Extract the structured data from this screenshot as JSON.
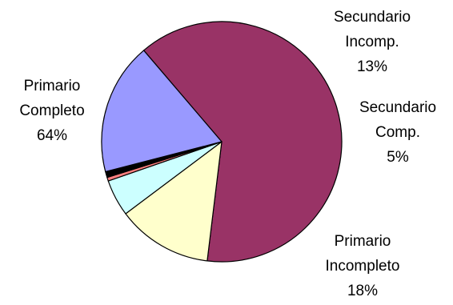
{
  "chart_data": {
    "type": "pie",
    "title": "",
    "slices": [
      {
        "label": "Primario Completo",
        "label_lines": [
          "Primario",
          "Completo",
          "64%"
        ],
        "value": 64,
        "color": "#993366"
      },
      {
        "label": "Secundario Incomp.",
        "label_lines": [
          "Secundario",
          "Incomp.",
          "13%"
        ],
        "value": 13,
        "color": "#FFFFCC"
      },
      {
        "label": "Secundario Comp.",
        "label_lines": [
          "Secundario",
          "Comp.",
          "5%"
        ],
        "value": 5,
        "color": "#CCFFFF"
      },
      {
        "label": "",
        "label_lines": [],
        "value": 0.5,
        "color": "#FF8080"
      },
      {
        "label": "",
        "label_lines": [],
        "value": 0.8,
        "color": "#000000"
      },
      {
        "label": "Primario Incompleto",
        "label_lines": [
          "Primario",
          "Incompleto",
          "18%"
        ],
        "value": 18,
        "color": "#9999FF"
      }
    ],
    "border_color": "#000000",
    "legend": "none"
  }
}
